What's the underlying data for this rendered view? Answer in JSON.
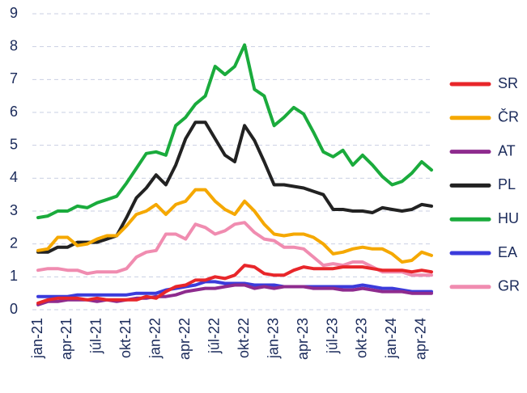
{
  "chart_data": {
    "type": "line",
    "categories": [
      "jan-21",
      null,
      null,
      "apr-21",
      null,
      null,
      "júl-21",
      null,
      null,
      "okt-21",
      null,
      null,
      "jan-22",
      null,
      null,
      "apr-22",
      null,
      null,
      "júl-22",
      null,
      null,
      "okt-22",
      null,
      null,
      "jan-23",
      null,
      null,
      "apr-23",
      null,
      null,
      "júl-23",
      null,
      null,
      "okt-23",
      null,
      null,
      "jan-24",
      null,
      null,
      "apr-24",
      null
    ],
    "ylim": [
      0,
      9
    ],
    "yticks": [
      0,
      1,
      2,
      3,
      4,
      5,
      6,
      7,
      8,
      9
    ],
    "grid": true,
    "legend": "right",
    "series": [
      {
        "name": "SR",
        "color": "#e8262a",
        "values": [
          0.2,
          0.3,
          0.35,
          0.35,
          0.35,
          0.3,
          0.35,
          0.3,
          0.3,
          0.3,
          0.3,
          0.4,
          0.35,
          0.55,
          0.7,
          0.75,
          0.9,
          0.9,
          1.0,
          0.95,
          1.05,
          1.35,
          1.3,
          1.1,
          1.05,
          1.05,
          1.2,
          1.3,
          1.25,
          1.25,
          1.25,
          1.3,
          1.3,
          1.3,
          1.25,
          1.2,
          1.2,
          1.2,
          1.15,
          1.2,
          1.15
        ]
      },
      {
        "name": "ČR",
        "color": "#f5a800",
        "values": [
          1.8,
          1.85,
          2.2,
          2.2,
          1.95,
          2.0,
          2.15,
          2.25,
          2.25,
          2.55,
          2.9,
          3.0,
          3.2,
          2.9,
          3.2,
          3.3,
          3.65,
          3.65,
          3.3,
          3.05,
          2.9,
          3.3,
          3.0,
          2.6,
          2.3,
          2.25,
          2.3,
          2.3,
          2.2,
          2.0,
          1.7,
          1.75,
          1.85,
          1.9,
          1.85,
          1.85,
          1.7,
          1.45,
          1.5,
          1.75,
          1.65
        ]
      },
      {
        "name": "AT",
        "color": "#8e2b8e",
        "values": [
          0.15,
          0.25,
          0.25,
          0.3,
          0.3,
          0.3,
          0.25,
          0.3,
          0.25,
          0.3,
          0.35,
          0.35,
          0.4,
          0.4,
          0.45,
          0.55,
          0.6,
          0.65,
          0.65,
          0.7,
          0.75,
          0.75,
          0.65,
          0.7,
          0.65,
          0.7,
          0.7,
          0.7,
          0.65,
          0.65,
          0.65,
          0.6,
          0.6,
          0.65,
          0.6,
          0.55,
          0.55,
          0.55,
          0.5,
          0.5,
          0.5
        ]
      },
      {
        "name": "PL",
        "color": "#222222",
        "values": [
          1.75,
          1.75,
          1.9,
          1.9,
          2.05,
          2.05,
          2.05,
          2.15,
          2.25,
          2.8,
          3.4,
          3.7,
          4.1,
          3.8,
          4.4,
          5.2,
          5.7,
          5.7,
          5.2,
          4.7,
          4.5,
          5.6,
          5.15,
          4.5,
          3.8,
          3.8,
          3.75,
          3.7,
          3.6,
          3.5,
          3.05,
          3.05,
          3.0,
          3.0,
          2.95,
          3.1,
          3.05,
          3.0,
          3.05,
          3.2,
          3.15
        ]
      },
      {
        "name": "HU",
        "color": "#1aab3c",
        "values": [
          2.8,
          2.85,
          3.0,
          3.0,
          3.15,
          3.1,
          3.25,
          3.35,
          3.45,
          3.85,
          4.3,
          4.75,
          4.8,
          4.7,
          5.6,
          5.85,
          6.25,
          6.5,
          7.4,
          7.15,
          7.4,
          8.05,
          6.7,
          6.5,
          5.6,
          5.85,
          6.15,
          5.95,
          5.4,
          4.8,
          4.65,
          4.85,
          4.4,
          4.7,
          4.4,
          4.05,
          3.8,
          3.9,
          4.15,
          4.5,
          4.25
        ]
      },
      {
        "name": "EA",
        "color": "#3b3bdb",
        "values": [
          0.4,
          0.4,
          0.4,
          0.4,
          0.45,
          0.45,
          0.45,
          0.45,
          0.45,
          0.45,
          0.5,
          0.5,
          0.5,
          0.6,
          0.65,
          0.7,
          0.75,
          0.85,
          0.85,
          0.8,
          0.8,
          0.8,
          0.75,
          0.75,
          0.75,
          0.7,
          0.7,
          0.7,
          0.7,
          0.7,
          0.7,
          0.7,
          0.7,
          0.75,
          0.7,
          0.65,
          0.65,
          0.6,
          0.55,
          0.55,
          0.55
        ]
      },
      {
        "name": "GR",
        "color": "#f08cb0",
        "values": [
          1.2,
          1.25,
          1.25,
          1.2,
          1.2,
          1.1,
          1.15,
          1.15,
          1.15,
          1.25,
          1.6,
          1.75,
          1.8,
          2.3,
          2.3,
          2.15,
          2.6,
          2.5,
          2.3,
          2.4,
          2.6,
          2.65,
          2.35,
          2.15,
          2.1,
          1.9,
          1.9,
          1.85,
          1.6,
          1.35,
          1.4,
          1.35,
          1.45,
          1.45,
          1.3,
          1.15,
          1.15,
          1.15,
          1.05,
          1.05,
          1.05
        ]
      }
    ]
  }
}
